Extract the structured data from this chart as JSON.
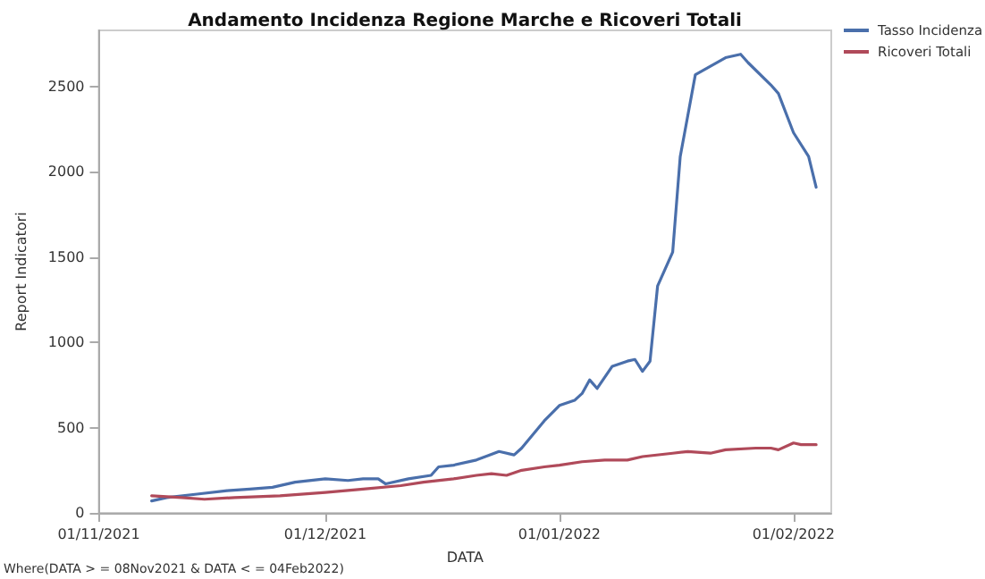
{
  "chart_data": {
    "type": "line",
    "title": "Andamento Incidenza Regione Marche e Ricoveri Totali",
    "xlabel": "DATA",
    "ylabel": "Report Indicatori",
    "annotations": [
      "Where(DATA > = 08Nov2021 & DATA < = 04Feb2022)"
    ],
    "series": [
      {
        "name": "Tasso Incidenza",
        "color": "#4a6fab",
        "x": [
          "2021-11-08",
          "2021-11-10",
          "2021-11-14",
          "2021-11-18",
          "2021-11-21",
          "2021-11-24",
          "2021-11-27",
          "2021-12-01",
          "2021-12-04",
          "2021-12-06",
          "2021-12-08",
          "2021-12-09",
          "2021-12-12",
          "2021-12-15",
          "2021-12-16",
          "2021-12-18",
          "2021-12-21",
          "2021-12-24",
          "2021-12-26",
          "2021-12-27",
          "2021-12-30",
          "2022-01-01",
          "2022-01-03",
          "2022-01-04",
          "2022-01-05",
          "2022-01-06",
          "2022-01-08",
          "2022-01-10",
          "2022-01-11",
          "2022-01-12",
          "2022-01-13",
          "2022-01-14",
          "2022-01-16",
          "2022-01-17",
          "2022-01-19",
          "2022-01-21",
          "2022-01-23",
          "2022-01-25",
          "2022-01-26",
          "2022-01-29",
          "2022-01-30",
          "2022-02-01",
          "2022-02-03",
          "2022-02-04"
        ],
        "values": [
          70,
          90,
          110,
          130,
          140,
          150,
          180,
          200,
          190,
          200,
          200,
          170,
          200,
          220,
          270,
          280,
          310,
          360,
          340,
          380,
          540,
          630,
          660,
          700,
          780,
          730,
          860,
          890,
          900,
          830,
          890,
          1330,
          1530,
          2090,
          2570,
          2620,
          2670,
          2690,
          2640,
          2510,
          2460,
          2230,
          2090,
          1910
        ]
      },
      {
        "name": "Ricoveri Totali",
        "color": "#b04a5a",
        "x": [
          "2021-11-08",
          "2021-11-12",
          "2021-11-15",
          "2021-11-19",
          "2021-11-25",
          "2021-12-01",
          "2021-12-06",
          "2021-12-11",
          "2021-12-14",
          "2021-12-18",
          "2021-12-21",
          "2021-12-23",
          "2021-12-25",
          "2021-12-27",
          "2021-12-30",
          "2022-01-01",
          "2022-01-04",
          "2022-01-07",
          "2022-01-10",
          "2022-01-12",
          "2022-01-16",
          "2022-01-18",
          "2022-01-21",
          "2022-01-23",
          "2022-01-27",
          "2022-01-29",
          "2022-01-30",
          "2022-02-01",
          "2022-02-02",
          "2022-02-04"
        ],
        "values": [
          100,
          90,
          80,
          90,
          100,
          120,
          140,
          160,
          180,
          200,
          220,
          230,
          220,
          250,
          270,
          280,
          300,
          310,
          310,
          330,
          350,
          360,
          350,
          370,
          380,
          380,
          370,
          410,
          400,
          400
        ]
      }
    ],
    "xlim": [
      "2021-11-01",
      "2022-02-06"
    ],
    "xticks": [
      {
        "value": "2021-11-01",
        "label": "01/11/2021"
      },
      {
        "value": "2021-12-01",
        "label": "01/12/2021"
      },
      {
        "value": "2022-01-01",
        "label": "01/01/2022"
      },
      {
        "value": "2022-02-01",
        "label": "01/02/2022"
      }
    ],
    "ylim": [
      0,
      2830
    ],
    "yticks": [
      0,
      500,
      1000,
      1500,
      2000,
      2500
    ],
    "grid": false,
    "legend": "top right",
    "marker": "none",
    "line_style": "solid"
  }
}
